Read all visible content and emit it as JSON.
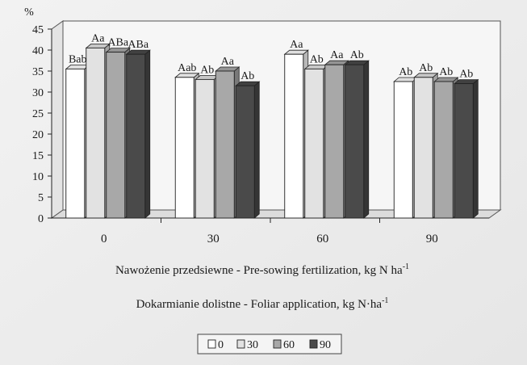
{
  "chart_data": {
    "type": "bar",
    "y_unit": "%",
    "ylim": [
      0,
      45
    ],
    "y_ticks": [
      0,
      5,
      10,
      15,
      20,
      25,
      30,
      35,
      40,
      45
    ],
    "categories": [
      "0",
      "30",
      "60",
      "90"
    ],
    "xlabel_line1": "Nawożenie przedsiewne - Pre-sowing fertilization, kg N ha",
    "xlabel_line1_sup": "-1",
    "xlabel_line2": "Dokarmianie dolistne - Foliar application, kg N·ha",
    "xlabel_line2_sup": "-1",
    "grid": false,
    "legend_position": "bottom",
    "series": [
      {
        "name": "0",
        "color": "#ffffff",
        "values": [
          35.5,
          33.5,
          39.0,
          32.5
        ],
        "labels": [
          "Bab",
          "Aab",
          "Aa",
          "Ab"
        ]
      },
      {
        "name": "30",
        "color": "#e2e2e2",
        "values": [
          40.5,
          33.0,
          35.5,
          33.5
        ],
        "labels": [
          "Aa",
          "Ab",
          "Ab",
          "Ab"
        ]
      },
      {
        "name": "60",
        "color": "#a8a8a8",
        "values": [
          39.5,
          35.0,
          36.5,
          32.5
        ],
        "labels": [
          "ABa",
          "Aa",
          "Aa",
          "Ab"
        ]
      },
      {
        "name": "90",
        "color": "#4a4a4a",
        "values": [
          39.0,
          31.5,
          36.5,
          32.0
        ],
        "labels": [
          "ABa",
          "Ab",
          "Ab",
          "Ab"
        ]
      }
    ]
  }
}
